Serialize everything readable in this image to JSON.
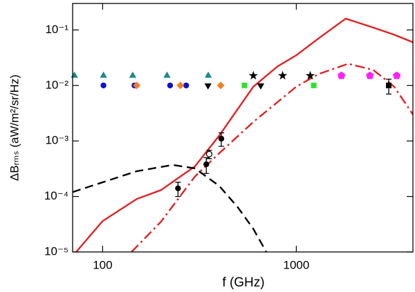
{
  "chart_data": {
    "type": "line",
    "xlabel": "f (GHz)",
    "ylabel": "ΔBᵣₘₛ (aW/m²/sr/Hz)",
    "xlog": true,
    "ylog": true,
    "xlim": [
      70,
      4000
    ],
    "ylim": [
      1e-05,
      0.3
    ],
    "xticks": [
      100,
      1000
    ],
    "yticks": [
      {
        "value": 1e-05,
        "label": "10⁻⁵"
      },
      {
        "value": 0.0001,
        "label": "10⁻⁴"
      },
      {
        "value": 0.001,
        "label": "10⁻³"
      },
      {
        "value": 0.01,
        "label": "10⁻²"
      },
      {
        "value": 0.1,
        "label": "10⁻¹"
      }
    ],
    "series": [
      {
        "color": "#e02020",
        "style": "solid",
        "x": [
          73,
          100,
          150,
          200,
          300,
          400,
          600,
          800,
          1000,
          1300,
          1800,
          2500,
          3200,
          4000
        ],
        "values": [
          1e-05,
          3.6e-05,
          9e-05,
          0.00013,
          0.00035,
          0.00125,
          0.0095,
          0.022,
          0.035,
          0.07,
          0.16,
          0.11,
          0.082,
          0.06
        ]
      },
      {
        "color": "#e02020",
        "style": "dashdot",
        "x": [
          141,
          200,
          300,
          400,
          600,
          1000,
          1300,
          1850,
          2500,
          3200,
          4000
        ],
        "values": [
          1e-05,
          3.5e-05,
          0.00023,
          0.0006,
          0.0022,
          0.0095,
          0.016,
          0.0246,
          0.019,
          0.0095,
          0.003
        ]
      },
      {
        "color": "#000000",
        "style": "dashed",
        "x": [
          70,
          100,
          150,
          230,
          300,
          400,
          500,
          600,
          700
        ],
        "values": [
          0.00012,
          0.00018,
          0.000285,
          0.00037,
          0.00032,
          0.000155,
          6.3e-05,
          2.6e-05,
          1e-05
        ]
      },
      {
        "color": "#1a8a8a",
        "marker": "triangle",
        "x": [
          71.5,
          101,
          143,
          215,
          351
        ],
        "values": [
          0.015,
          0.015,
          0.015,
          0.015,
          0.015
        ]
      },
      {
        "color": "#1010d0",
        "marker": "circle",
        "x": [
          101,
          146,
          223,
          270
        ],
        "values": [
          0.01,
          0.01,
          0.01,
          0.01
        ]
      },
      {
        "color": "#f08020",
        "marker": "diamond",
        "x": [
          150,
          252,
          407
        ],
        "values": [
          0.01,
          0.01,
          0.01
        ]
      },
      {
        "color": "#000000",
        "marker": "tridown",
        "x": [
          350,
          655
        ],
        "values": [
          0.01,
          0.01
        ]
      },
      {
        "color": "#000000",
        "marker": "star",
        "x": [
          600,
          850,
          1180
        ],
        "values": [
          0.015,
          0.015,
          0.015
        ]
      },
      {
        "color": "#30e030",
        "marker": "square",
        "x": [
          540,
          1230
        ],
        "values": [
          0.01,
          0.01
        ]
      },
      {
        "color": "#ff20ff",
        "marker": "pentagon",
        "x": [
          1710,
          2400,
          3300
        ],
        "values": [
          0.015,
          0.015,
          0.015
        ]
      },
      {
        "color": "#000000",
        "marker": "circle",
        "x": [
          245,
          343,
          410
        ],
        "values": [
          0.00014,
          0.00038,
          0.0011
        ],
        "errors": [
          4e-05,
          0.00012,
          0.0003
        ]
      },
      {
        "color": "#000000",
        "marker": "circle-open",
        "x": [
          355
        ],
        "values": [
          0.00058
        ],
        "errors": [
          0.0001
        ]
      },
      {
        "color": "#000000",
        "marker": "square",
        "x": [
          3000
        ],
        "values": [
          0.01
        ],
        "errors": [
          0.003
        ]
      }
    ]
  }
}
